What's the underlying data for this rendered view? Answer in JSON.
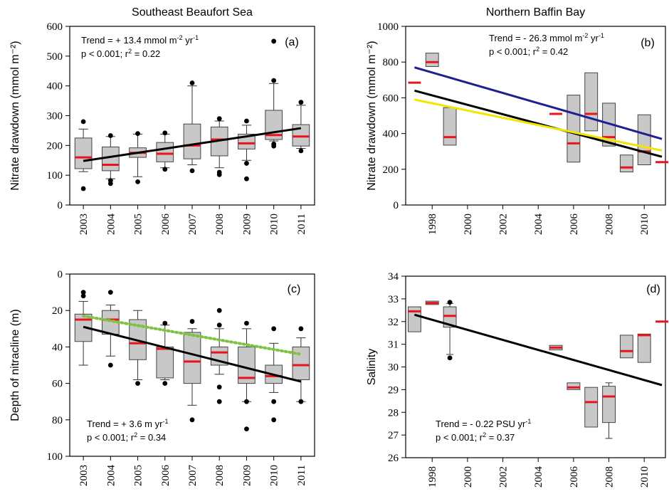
{
  "chart_data": [
    {
      "id": "a",
      "type": "box",
      "title": "Southeast Beaufort Sea",
      "panel_label": "(a)",
      "ylabel": "Nitrate drawdown (mmol m⁻²)",
      "ylim": [
        0,
        600
      ],
      "yticks": [
        0,
        100,
        200,
        300,
        400,
        500,
        600
      ],
      "categories": [
        "2003",
        "2004",
        "2005",
        "2006",
        "2007",
        "2008",
        "2009",
        "2010",
        "2011"
      ],
      "boxes": [
        {
          "x": "2003",
          "whisker_low": 112,
          "q1": 122,
          "median": 160,
          "q3": 225,
          "whisker_high": 255,
          "outliers": [
            55,
            280
          ]
        },
        {
          "x": "2004",
          "whisker_low": 88,
          "q1": 115,
          "median": 135,
          "q3": 195,
          "whisker_high": 230,
          "outliers": [
            72,
            82,
            233
          ]
        },
        {
          "x": "2005",
          "whisker_low": 95,
          "q1": 160,
          "median": 175,
          "q3": 192,
          "whisker_high": 238,
          "outliers": [
            78,
            240
          ]
        },
        {
          "x": "2006",
          "whisker_low": 125,
          "q1": 145,
          "median": 172,
          "q3": 210,
          "whisker_high": 238,
          "outliers": [
            120,
            242
          ]
        },
        {
          "x": "2007",
          "whisker_low": 135,
          "q1": 155,
          "median": 200,
          "q3": 272,
          "whisker_high": 400,
          "outliers": [
            115,
            410
          ]
        },
        {
          "x": "2008",
          "whisker_low": 125,
          "q1": 165,
          "median": 220,
          "q3": 262,
          "whisker_high": 282,
          "outliers": [
            102,
            110,
            290
          ]
        },
        {
          "x": "2009",
          "whisker_low": 150,
          "q1": 188,
          "median": 207,
          "q3": 238,
          "whisker_high": 268,
          "outliers": [
            88,
            140,
            282
          ]
        },
        {
          "x": "2010",
          "whisker_low": 215,
          "q1": 220,
          "median": 235,
          "q3": 318,
          "whisker_high": 408,
          "outliers": [
            198,
            205,
            418,
            550
          ]
        },
        {
          "x": "2011",
          "whisker_low": 190,
          "q1": 198,
          "median": 230,
          "q3": 270,
          "whisker_high": 335,
          "outliers": [
            182,
            345
          ]
        }
      ],
      "trend_lines": [
        {
          "color": "#000000",
          "from": [
            "2003",
            148
          ],
          "to": [
            "2011",
            258
          ],
          "style": "solid"
        }
      ],
      "annotation": {
        "line1": "Trend = + 13.4 mmol m",
        "sup1": "-2",
        "mid1": " yr",
        "sup2": "-1",
        "line2": "p < 0.001; r",
        "sup3": "2",
        "end2": " = 0.22"
      }
    },
    {
      "id": "b",
      "type": "box",
      "title": "Northern Baffin Bay",
      "panel_label": "(b)",
      "ylabel": "Nitrate drawdown (mmol m⁻²)",
      "ylim": [
        0,
        1000
      ],
      "yticks": [
        0,
        200,
        400,
        600,
        800,
        1000
      ],
      "xlim": [
        1996.5,
        2011.2
      ],
      "xticks": [
        "1998",
        "2000",
        "2002",
        "2004",
        "2006",
        "2008",
        "2010"
      ],
      "boxes": [
        {
          "x": 1997,
          "median": 685
        },
        {
          "x": 1998,
          "q1": 775,
          "median": 800,
          "q3": 850
        },
        {
          "x": 1999,
          "q1": 335,
          "median": 380,
          "q3": 545
        },
        {
          "x": 2005,
          "median": 510
        },
        {
          "x": 2006,
          "q1": 240,
          "median": 345,
          "q3": 615
        },
        {
          "x": 2007,
          "q1": 415,
          "median": 510,
          "q3": 740
        },
        {
          "x": 2008,
          "q1": 330,
          "median": 380,
          "q3": 570
        },
        {
          "x": 2009,
          "q1": 185,
          "median": 210,
          "q3": 280
        },
        {
          "x": 2010,
          "q1": 225,
          "median": 300,
          "q3": 505
        },
        {
          "x": 2011,
          "median": 240
        }
      ],
      "trend_lines": [
        {
          "color": "#1f1f8f",
          "from": [
            1997,
            770
          ],
          "to": [
            2011,
            370
          ],
          "style": "solid"
        },
        {
          "color": "#000000",
          "from": [
            1997,
            640
          ],
          "to": [
            2011,
            270
          ],
          "style": "solid"
        },
        {
          "color": "#f2e600",
          "from": [
            1997,
            590
          ],
          "to": [
            2011,
            305
          ],
          "style": "solid"
        }
      ],
      "annotation": {
        "line1": "Trend = - 26.3 mmol m",
        "sup1": "-2",
        "mid1": " yr",
        "sup2": "-1",
        "line2": "p < 0.001; r",
        "sup3": "2",
        "end2": " = 0.42"
      }
    },
    {
      "id": "c",
      "type": "box",
      "panel_label": "(c)",
      "ylabel": "Depth of nitracline (m)",
      "ylim": [
        0,
        100
      ],
      "y_inverted": true,
      "yticks": [
        0,
        20,
        40,
        60,
        80,
        100
      ],
      "categories": [
        "2003",
        "2004",
        "2005",
        "2006",
        "2007",
        "2008",
        "2009",
        "2010",
        "2011"
      ],
      "boxes": [
        {
          "x": "2003",
          "whisker_low": 15,
          "q1": 22,
          "median": 25,
          "q3": 37,
          "whisker_high": 50,
          "outliers": [
            10,
            12
          ]
        },
        {
          "x": "2004",
          "whisker_low": 17,
          "q1": 20,
          "median": 25,
          "q3": 33,
          "whisker_high": 45,
          "outliers": [
            10,
            50
          ]
        },
        {
          "x": "2005",
          "whisker_low": 20,
          "q1": 25,
          "median": 38,
          "q3": 47,
          "whisker_high": 58,
          "outliers": [
            60
          ]
        },
        {
          "x": "2006",
          "whisker_low": 28,
          "q1": 40,
          "median": 41,
          "q3": 57,
          "whisker_high": 58,
          "outliers": [
            27,
            60
          ]
        },
        {
          "x": "2007",
          "whisker_low": 30,
          "q1": 32,
          "median": 48,
          "q3": 60,
          "whisker_high": 72,
          "outliers": [
            26,
            80
          ]
        },
        {
          "x": "2008",
          "whisker_low": 30,
          "q1": 40,
          "median": 43,
          "q3": 50,
          "whisker_high": 55,
          "outliers": [
            20,
            28,
            62,
            70
          ]
        },
        {
          "x": "2009",
          "whisker_low": 30,
          "q1": 40,
          "median": 57,
          "q3": 60,
          "whisker_high": 70,
          "outliers": [
            27,
            70,
            85
          ]
        },
        {
          "x": "2010",
          "whisker_low": 38,
          "q1": 50,
          "median": 56,
          "q3": 60,
          "whisker_high": 65,
          "outliers": [
            30,
            70,
            80
          ]
        },
        {
          "x": "2011",
          "whisker_low": 35,
          "q1": 40,
          "median": 50,
          "q3": 58,
          "whisker_high": 70,
          "outliers": [
            30,
            70
          ]
        }
      ],
      "trend_lines": [
        {
          "color": "#000000",
          "from": [
            "2003",
            29
          ],
          "to": [
            "2011",
            59
          ],
          "style": "solid"
        },
        {
          "color": "#7fc241",
          "from": [
            "2003",
            23
          ],
          "to": [
            "2011",
            44
          ],
          "style": "dotted"
        }
      ],
      "annotation": {
        "line1": "Trend = + 3.6 m yr",
        "sup1": "-1",
        "line2": "p < 0.001; r",
        "sup3": "2",
        "end2": " = 0.34"
      }
    },
    {
      "id": "d",
      "type": "box",
      "panel_label": "(d)",
      "ylabel": "Salinity",
      "ylim": [
        26,
        34
      ],
      "yticks": [
        26,
        27,
        28,
        29,
        30,
        31,
        32,
        33,
        34
      ],
      "xlim": [
        1996.5,
        2011.2
      ],
      "xticks": [
        "1998",
        "2000",
        "2002",
        "2004",
        "2006",
        "2008",
        "2010"
      ],
      "boxes": [
        {
          "x": 1997,
          "q1": 31.55,
          "median": 32.45,
          "q3": 32.65
        },
        {
          "x": 1998,
          "q1": 32.75,
          "median": 32.82,
          "q3": 32.9
        },
        {
          "x": 1999,
          "whisker_low": 30.55,
          "q1": 31.75,
          "median": 32.25,
          "q3": 32.65,
          "whisker_high": 32.8,
          "outliers": [
            30.4,
            32.85
          ]
        },
        {
          "x": 2005,
          "q1": 30.75,
          "median": 30.85,
          "q3": 30.95
        },
        {
          "x": 2006,
          "q1": 29.0,
          "median": 29.1,
          "q3": 29.3
        },
        {
          "x": 2007,
          "q1": 27.35,
          "median": 28.45,
          "q3": 29.1
        },
        {
          "x": 2008,
          "whisker_low": 26.85,
          "q1": 27.55,
          "median": 28.7,
          "q3": 29.15,
          "whisker_high": 29.3
        },
        {
          "x": 2009,
          "q1": 30.4,
          "median": 30.7,
          "q3": 31.4
        },
        {
          "x": 2010,
          "q1": 30.2,
          "median": 31.4,
          "q3": 31.45
        },
        {
          "x": 2011,
          "median": 32.0
        }
      ],
      "trend_lines": [
        {
          "color": "#000000",
          "from": [
            1997,
            32.3
          ],
          "to": [
            2011,
            29.2
          ],
          "style": "solid"
        }
      ],
      "annotation": {
        "line1": "Trend = - 0.22 PSU yr",
        "sup1": "-1",
        "line2": "p < 0.001; r",
        "sup3": "2",
        "end2": " = 0.37"
      }
    }
  ]
}
